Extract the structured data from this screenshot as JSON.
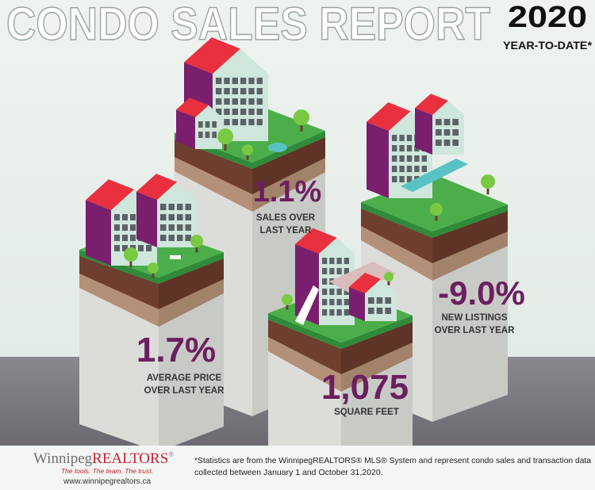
{
  "header": {
    "title": "CONDO SALES REPORT",
    "year": "2020",
    "subtitle": "YEAR-TO-DATE*"
  },
  "stats": [
    {
      "value": "1.1%",
      "label": [
        "SALES OVER",
        "LAST YEAR"
      ]
    },
    {
      "value": "1.7%",
      "label": [
        "AVERAGE PRICE",
        "OVER LAST YEAR"
      ]
    },
    {
      "value": "1,075",
      "label": [
        "SQUARE FEET"
      ]
    },
    {
      "value": "-9.0%",
      "label": [
        "NEW LISTINGS",
        "OVER LAST YEAR"
      ]
    }
  ],
  "footer": {
    "logo": {
      "first": "Winnipeg",
      "second": "REALTORS",
      "mark": "®"
    },
    "tagline": "The tools. The team. The trust.",
    "url": "www.winnipegrealtors.ca",
    "note": [
      "*Statistics are from the WinnipegREALTORS® MLS® System and represent condo sales and transaction data",
      "collected between January 1 and October 31,2020."
    ]
  }
}
